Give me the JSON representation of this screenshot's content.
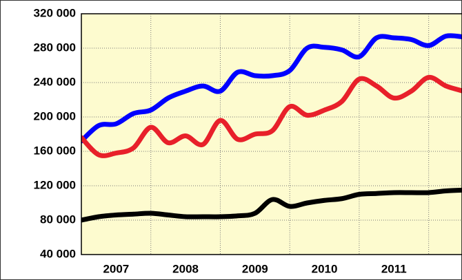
{
  "chart_data": {
    "type": "line",
    "x": [
      2007,
      2007.25,
      2007.5,
      2007.75,
      2008,
      2008.25,
      2008.5,
      2008.75,
      2009,
      2009.25,
      2009.5,
      2009.75,
      2010,
      2010.25,
      2010.5,
      2010.75,
      2011,
      2011.25,
      2011.5,
      2011.75,
      2012,
      2012.25,
      2012.5
    ],
    "series": [
      {
        "color": "#0000ff",
        "values": [
          172000,
          190000,
          192000,
          204000,
          208000,
          222000,
          230000,
          236000,
          230000,
          252000,
          248000,
          248000,
          254000,
          280000,
          281000,
          278000,
          270000,
          292000,
          292000,
          290000,
          283000,
          294000,
          293000
        ]
      },
      {
        "color": "#e8202a",
        "values": [
          176000,
          156000,
          158000,
          164000,
          188000,
          170000,
          178000,
          168000,
          196000,
          174000,
          180000,
          184000,
          212000,
          202000,
          208000,
          218000,
          244000,
          236000,
          222000,
          230000,
          246000,
          236000,
          230000
        ]
      },
      {
        "color": "#000000",
        "values": [
          80000,
          84000,
          86000,
          87000,
          88000,
          86000,
          84000,
          84000,
          84000,
          85000,
          88000,
          104000,
          96000,
          100000,
          103000,
          105000,
          110000,
          111000,
          112000,
          112000,
          112000,
          114000,
          115000
        ]
      }
    ],
    "xlim": [
      2007,
      2012.48
    ],
    "xticks": [
      {
        "value": 2007.5,
        "label": "2007"
      },
      {
        "value": 2008.5,
        "label": "2008"
      },
      {
        "value": 2009.5,
        "label": "2009"
      },
      {
        "value": 2010.5,
        "label": "2010"
      },
      {
        "value": 2011.5,
        "label": "2011"
      }
    ],
    "xgrid": [
      2008,
      2009,
      2010,
      2011,
      2012
    ],
    "ylim": [
      40000,
      320000
    ],
    "yticks": [
      {
        "value": 40000,
        "label": "40 000"
      },
      {
        "value": 80000,
        "label": "80 000"
      },
      {
        "value": 120000,
        "label": "120 000"
      },
      {
        "value": 160000,
        "label": "160 000"
      },
      {
        "value": 200000,
        "label": "200 000"
      },
      {
        "value": 240000,
        "label": "240 000"
      },
      {
        "value": 280000,
        "label": "280 000"
      },
      {
        "value": 320000,
        "label": "320 000"
      }
    ],
    "grid": true
  }
}
